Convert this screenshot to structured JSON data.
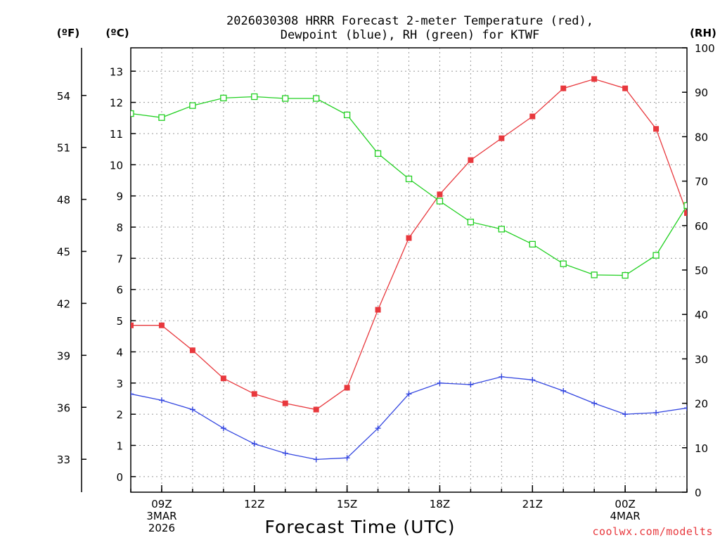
{
  "chart_data": {
    "type": "line",
    "title": "2026030308 HRRR Forecast 2-meter Temperature (red),",
    "title_line2": "Dewpoint (blue), RH (green) for KTWF",
    "xlabel": "Forecast Time (UTC)",
    "credit": "coolwx.com/modelts",
    "units": {
      "fahrenheit": "(ºF)",
      "celsius": "(ºC)",
      "rh": "(RH)"
    },
    "x_hours": [
      8,
      9,
      10,
      11,
      12,
      13,
      14,
      15,
      16,
      17,
      18,
      19,
      20,
      21,
      22,
      23,
      24,
      25,
      26
    ],
    "x_range": [
      8,
      26
    ],
    "x_ticks": [
      {
        "hour": 9,
        "lines": [
          "09Z",
          "3MAR",
          "2026"
        ]
      },
      {
        "hour": 12,
        "lines": [
          "12Z"
        ]
      },
      {
        "hour": 15,
        "lines": [
          "15Z"
        ]
      },
      {
        "hour": 18,
        "lines": [
          "18Z"
        ]
      },
      {
        "hour": 21,
        "lines": [
          "21Z"
        ]
      },
      {
        "hour": 24,
        "lines": [
          "00Z",
          "4MAR"
        ]
      }
    ],
    "celsius_axis": {
      "range": [
        -0.5,
        13.75
      ],
      "ticks": [
        0,
        1,
        2,
        3,
        4,
        5,
        6,
        7,
        8,
        9,
        10,
        11,
        12,
        13
      ]
    },
    "fahrenheit_axis": {
      "ticks": [
        33,
        36,
        39,
        42,
        45,
        48,
        51,
        54
      ]
    },
    "rh_axis": {
      "range": [
        0,
        100
      ],
      "ticks": [
        0,
        10,
        20,
        30,
        40,
        50,
        60,
        70,
        80,
        90,
        100
      ]
    },
    "series": [
      {
        "name": "2-meter Temperature",
        "unit": "C",
        "color": "#e8383d",
        "marker": "filled-square",
        "values": [
          4.85,
          4.85,
          4.05,
          3.15,
          2.65,
          2.35,
          2.15,
          2.85,
          5.35,
          7.65,
          9.05,
          10.15,
          10.85,
          11.55,
          12.45,
          12.75,
          12.45,
          11.15,
          8.45
        ]
      },
      {
        "name": "Dewpoint",
        "unit": "C",
        "color": "#3346e0",
        "marker": "plus",
        "values": [
          2.65,
          2.45,
          2.15,
          1.55,
          1.05,
          0.75,
          0.55,
          0.6,
          1.55,
          2.65,
          3.0,
          2.95,
          3.2,
          3.1,
          2.75,
          2.35,
          2.0,
          2.05,
          2.2
        ]
      },
      {
        "name": "Relative Humidity",
        "unit": "%",
        "color": "#22d022",
        "marker": "open-square",
        "values": [
          85.2,
          84.3,
          87.0,
          88.7,
          89.0,
          88.6,
          88.6,
          84.9,
          76.2,
          70.5,
          65.5,
          60.8,
          59.2,
          55.8,
          51.4,
          48.9,
          48.8,
          53.3,
          64.5
        ]
      }
    ]
  }
}
